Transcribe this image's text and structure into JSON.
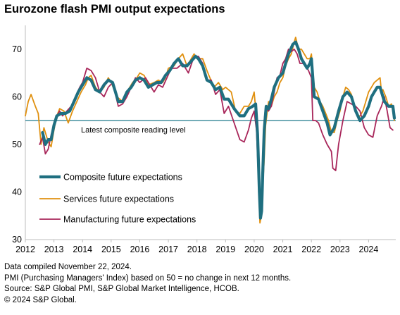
{
  "title": "Eurozone flash PMI output expectations",
  "footnotes": [
    "Data compiled November 22, 2024.",
    "PMI (Purchasing Managers' Index) based on 50 = no change in next 12 months.",
    "Source: S&P Global PMI, S&P Global Market Intelligence, HCOB.",
    "© 2024 S&P Global."
  ],
  "chart_data": {
    "type": "line",
    "title": "Eurozone flash PMI output expectations",
    "xlabel": "",
    "ylabel": "",
    "xlim": [
      2012.0,
      2024.95
    ],
    "ylim": [
      30,
      75
    ],
    "x_ticks": [
      "2012",
      "2013",
      "2014",
      "2015",
      "2016",
      "2017",
      "2018",
      "2019",
      "2020",
      "2021",
      "2022",
      "2023",
      "2024"
    ],
    "y_ticks": [
      30,
      40,
      50,
      60,
      70
    ],
    "grid": false,
    "reference_line": {
      "value": 55,
      "label": "Latest composite reading level",
      "color": "#1f7a8c"
    },
    "legend": {
      "placement": "lower-left"
    },
    "series": [
      {
        "name": "Services future expectations",
        "color": "#e0900f",
        "x": [
          2012.0,
          2012.1,
          2012.2,
          2012.35,
          2012.45,
          2012.55,
          2012.65,
          2012.8,
          2012.9,
          2013.0,
          2013.1,
          2013.2,
          2013.35,
          2013.5,
          2013.65,
          2013.8,
          2013.95,
          2014.1,
          2014.2,
          2014.3,
          2014.45,
          2014.6,
          2014.75,
          2014.9,
          2015.0,
          2015.2,
          2015.4,
          2015.6,
          2015.75,
          2015.9,
          2016.0,
          2016.15,
          2016.3,
          2016.5,
          2016.65,
          2016.8,
          2016.9,
          2017.0,
          2017.2,
          2017.35,
          2017.5,
          2017.65,
          2017.75,
          2017.9,
          2018.0,
          2018.2,
          2018.35,
          2018.45,
          2018.6,
          2018.75,
          2018.9,
          2019.0,
          2019.2,
          2019.35,
          2019.5,
          2019.65,
          2019.8,
          2019.9,
          2020.0,
          2020.08,
          2020.15,
          2020.2,
          2020.25,
          2020.3,
          2020.35,
          2020.4,
          2020.5,
          2020.6,
          2020.7,
          2020.8,
          2020.9,
          2021.0,
          2021.1,
          2021.2,
          2021.3,
          2021.4,
          2021.45,
          2021.55,
          2021.65,
          2021.75,
          2021.85,
          2021.95,
          2022.0,
          2022.1,
          2022.2,
          2022.3,
          2022.4,
          2022.5,
          2022.6,
          2022.7,
          2022.8,
          2022.9,
          2023.0,
          2023.1,
          2023.2,
          2023.3,
          2023.4,
          2023.5,
          2023.6,
          2023.7,
          2023.8,
          2023.9,
          2024.0,
          2024.1,
          2024.2,
          2024.3,
          2024.4,
          2024.45,
          2024.5,
          2024.6,
          2024.7,
          2024.8,
          2024.9
        ],
        "y": [
          56,
          59,
          60.5,
          58,
          56.5,
          50,
          53.5,
          50.5,
          49.5,
          53,
          56,
          57.5,
          57,
          54.5,
          57,
          59,
          61,
          62.5,
          64,
          64.5,
          62,
          61,
          62,
          64,
          63,
          60,
          59,
          61.5,
          63,
          64,
          65,
          64.5,
          62.5,
          63,
          63.5,
          63,
          64,
          66,
          66.5,
          68,
          69,
          66.5,
          67.5,
          69,
          68,
          68,
          65.5,
          64,
          62,
          63,
          61.5,
          62,
          61,
          57,
          56.5,
          58,
          58,
          59,
          61,
          55.5,
          42,
          33.5,
          35,
          41,
          47,
          54,
          59,
          58,
          60,
          61,
          63,
          64,
          66.5,
          68,
          69,
          71.5,
          72.5,
          70,
          70,
          69,
          68,
          68,
          69,
          62,
          61,
          59,
          58,
          56.5,
          55,
          52.5,
          52.5,
          55,
          57,
          60,
          62,
          61.5,
          60.5,
          58,
          56,
          56,
          57,
          59,
          61,
          62,
          63,
          63.5,
          64,
          61,
          61.5,
          60,
          58,
          58.5,
          55
        ]
      },
      {
        "name": "Manufacturing future expectations",
        "color": "#a8265a",
        "x": [
          2012.5,
          2012.6,
          2012.7,
          2012.8,
          2012.9,
          2013.0,
          2013.1,
          2013.2,
          2013.3,
          2013.45,
          2013.6,
          2013.75,
          2013.9,
          2014.0,
          2014.15,
          2014.3,
          2014.45,
          2014.6,
          2014.75,
          2014.9,
          2015.05,
          2015.25,
          2015.4,
          2015.55,
          2015.7,
          2015.85,
          2016.0,
          2016.2,
          2016.35,
          2016.5,
          2016.65,
          2016.8,
          2016.95,
          2017.1,
          2017.3,
          2017.5,
          2017.7,
          2017.9,
          2018.05,
          2018.2,
          2018.35,
          2018.5,
          2018.65,
          2018.8,
          2018.95,
          2019.1,
          2019.3,
          2019.5,
          2019.65,
          2019.8,
          2019.9,
          2020.0,
          2020.08,
          2020.15,
          2020.2,
          2020.25,
          2020.3,
          2020.35,
          2020.4,
          2020.5,
          2020.6,
          2020.7,
          2020.8,
          2020.9,
          2021.0,
          2021.1,
          2021.2,
          2021.3,
          2021.4,
          2021.5,
          2021.6,
          2021.7,
          2021.8,
          2021.9,
          2022.0,
          2022.05,
          2022.15,
          2022.25,
          2022.4,
          2022.55,
          2022.7,
          2022.75,
          2022.85,
          2022.95,
          2023.1,
          2023.25,
          2023.4,
          2023.55,
          2023.7,
          2023.85,
          2024.0,
          2024.15,
          2024.3,
          2024.45,
          2024.55,
          2024.65,
          2024.75,
          2024.85
        ],
        "y": [
          50,
          51.5,
          48,
          49,
          52,
          54,
          56,
          57,
          56,
          57,
          58,
          60,
          62,
          63,
          66,
          65.5,
          64,
          61,
          60,
          62,
          63,
          58,
          58.5,
          60,
          62,
          64,
          63,
          64,
          62.5,
          61,
          62.5,
          62,
          64,
          66,
          66,
          67,
          65,
          68.5,
          68.5,
          67,
          63.5,
          63.5,
          60.5,
          61.5,
          56.5,
          58,
          54.5,
          51,
          50.5,
          53,
          55.5,
          57,
          53,
          43,
          36,
          35,
          45,
          55,
          58,
          57,
          58,
          61,
          64,
          64.5,
          67,
          68,
          70,
          69.5,
          70,
          69,
          67,
          67,
          66.5,
          65.5,
          64,
          55,
          55,
          54.5,
          52,
          50,
          48.5,
          45,
          44.5,
          50,
          55,
          59,
          58.5,
          58,
          57,
          53.5,
          52,
          51.5,
          56,
          58,
          60,
          57,
          53.5,
          53
        ]
      },
      {
        "name": "Composite future expectations",
        "color": "#1f6f80",
        "x": [
          2012.6,
          2012.7,
          2012.8,
          2012.9,
          2013.0,
          2013.1,
          2013.25,
          2013.4,
          2013.55,
          2013.7,
          2013.85,
          2014.0,
          2014.15,
          2014.3,
          2014.45,
          2014.6,
          2014.75,
          2014.9,
          2015.05,
          2015.25,
          2015.4,
          2015.55,
          2015.7,
          2015.85,
          2016.0,
          2016.15,
          2016.3,
          2016.45,
          2016.6,
          2016.75,
          2016.9,
          2017.05,
          2017.2,
          2017.35,
          2017.5,
          2017.65,
          2017.8,
          2017.95,
          2018.05,
          2018.2,
          2018.35,
          2018.5,
          2018.65,
          2018.8,
          2018.95,
          2019.1,
          2019.3,
          2019.5,
          2019.65,
          2019.8,
          2019.95,
          2020.05,
          2020.12,
          2020.18,
          2020.22,
          2020.26,
          2020.3,
          2020.35,
          2020.42,
          2020.5,
          2020.6,
          2020.7,
          2020.85,
          2021.0,
          2021.1,
          2021.2,
          2021.35,
          2021.45,
          2021.55,
          2021.65,
          2021.75,
          2021.85,
          2021.95,
          2022.0,
          2022.1,
          2022.25,
          2022.4,
          2022.55,
          2022.65,
          2022.8,
          2022.95,
          2023.1,
          2023.25,
          2023.4,
          2023.55,
          2023.7,
          2023.85,
          2024.0,
          2024.1,
          2024.2,
          2024.3,
          2024.4,
          2024.55,
          2024.7,
          2024.85,
          2024.9
        ],
        "y": [
          52.5,
          50,
          51,
          51,
          54,
          56,
          56.5,
          56.5,
          57,
          59,
          61,
          62.5,
          64,
          63.5,
          61.5,
          61,
          62.5,
          63.5,
          63,
          59,
          59,
          61,
          62,
          63.5,
          64,
          63.5,
          62,
          62.5,
          63,
          63,
          64.5,
          65.5,
          67,
          68,
          66.5,
          66.5,
          67.5,
          68.5,
          68,
          66.5,
          63.5,
          63,
          61.5,
          62,
          59.5,
          59.5,
          57.5,
          56,
          56,
          57.5,
          58,
          58.5,
          52,
          40,
          34.5,
          36,
          44,
          53,
          58,
          57.5,
          59.5,
          62,
          64,
          65,
          67,
          69,
          71,
          71.5,
          70,
          68,
          67,
          66,
          67,
          68,
          60,
          59.5,
          57,
          54.5,
          52,
          53.5,
          57,
          60,
          61,
          60,
          57,
          55,
          56,
          58,
          60,
          61,
          62,
          62,
          59,
          58,
          58,
          55.5
        ]
      }
    ]
  }
}
